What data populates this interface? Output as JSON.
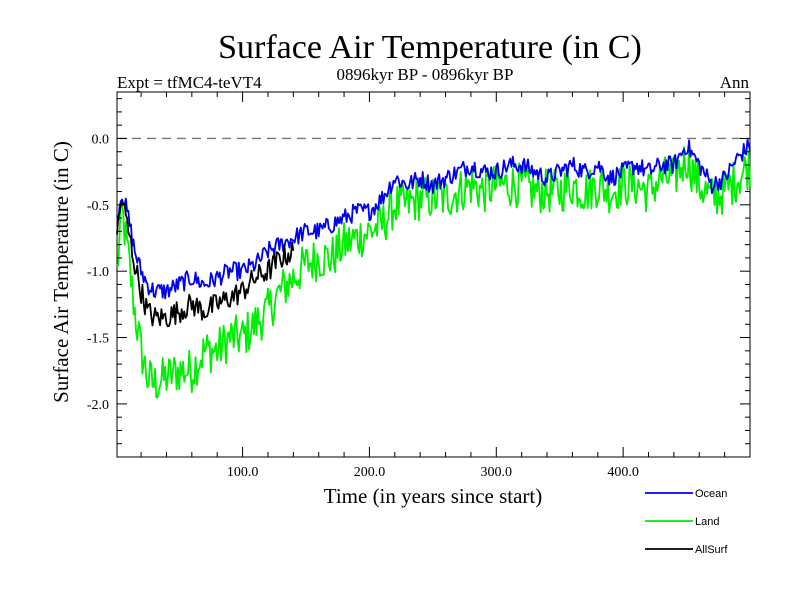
{
  "chart_data": {
    "type": "line",
    "title": "Surface Air Temperature (in C)",
    "experiment": "Expt = tfMC4-teVT4",
    "period": "0896kyr BP - 0896kyr BP",
    "season": "Ann",
    "xlabel": "Time (in years since start)",
    "ylabel": "Surface Air Temperature (in C)",
    "xlim": [
      1,
      500
    ],
    "ylim": [
      -2.4,
      0.35
    ],
    "xticks": [
      100,
      200,
      300,
      400
    ],
    "xtick_labels": [
      "100.0",
      "200.0",
      "300.0",
      "400.0"
    ],
    "yticks": [
      0.0,
      -0.5,
      -1.0,
      -1.5,
      -2.0
    ],
    "ytick_labels": [
      "0.0",
      "-0.5",
      "-1.0",
      "-1.5",
      "-2.0"
    ],
    "reference_line": 0.0,
    "series": [
      {
        "name": "Ocean",
        "color": "#0000ee",
        "years": [
          1,
          5,
          10,
          15,
          20,
          25,
          30,
          40,
          50,
          60,
          70,
          80,
          90,
          100,
          110,
          120,
          130,
          140,
          150,
          160,
          170,
          180,
          190,
          200,
          210,
          220,
          230,
          240,
          250,
          260,
          270,
          280,
          290,
          300,
          310,
          320,
          330,
          340,
          350,
          360,
          370,
          380,
          390,
          400,
          410,
          420,
          430,
          440,
          450,
          460,
          470,
          480,
          490,
          500
        ],
        "values": [
          -0.6,
          -0.4,
          -0.6,
          -0.85,
          -1.0,
          -1.1,
          -1.15,
          -1.15,
          -1.1,
          -1.05,
          -1.1,
          -1.05,
          -1.0,
          -1.0,
          -0.95,
          -0.85,
          -0.8,
          -0.75,
          -0.7,
          -0.7,
          -0.65,
          -0.6,
          -0.55,
          -0.55,
          -0.45,
          -0.3,
          -0.35,
          -0.3,
          -0.35,
          -0.3,
          -0.25,
          -0.2,
          -0.25,
          -0.25,
          -0.2,
          -0.2,
          -0.25,
          -0.3,
          -0.25,
          -0.2,
          -0.25,
          -0.2,
          -0.3,
          -0.25,
          -0.2,
          -0.25,
          -0.2,
          -0.2,
          -0.05,
          -0.2,
          -0.35,
          -0.3,
          -0.15,
          -0.05
        ]
      },
      {
        "name": "Land",
        "color": "#00ee00",
        "years": [
          1,
          5,
          10,
          15,
          20,
          25,
          30,
          40,
          50,
          60,
          70,
          80,
          90,
          100,
          110,
          120,
          130,
          140,
          150,
          160,
          170,
          180,
          190,
          200,
          210,
          220,
          230,
          240,
          250,
          260,
          270,
          280,
          290,
          300,
          310,
          320,
          330,
          340,
          350,
          360,
          370,
          380,
          390,
          400,
          410,
          420,
          430,
          440,
          450,
          460,
          470,
          480,
          490,
          500
        ],
        "values": [
          -1.0,
          -0.55,
          -0.9,
          -1.3,
          -1.6,
          -1.8,
          -1.85,
          -1.8,
          -1.75,
          -1.75,
          -1.6,
          -1.6,
          -1.5,
          -1.5,
          -1.4,
          -1.3,
          -1.15,
          -1.05,
          -0.95,
          -0.9,
          -0.9,
          -0.8,
          -0.75,
          -0.7,
          -0.65,
          -0.5,
          -0.5,
          -0.45,
          -0.45,
          -0.45,
          -0.4,
          -0.35,
          -0.4,
          -0.35,
          -0.35,
          -0.35,
          -0.4,
          -0.4,
          -0.4,
          -0.35,
          -0.4,
          -0.35,
          -0.4,
          -0.35,
          -0.35,
          -0.4,
          -0.3,
          -0.3,
          -0.15,
          -0.35,
          -0.45,
          -0.4,
          -0.3,
          -0.2
        ]
      },
      {
        "name": "AllSurf",
        "color": "#000000",
        "years": [
          1,
          5,
          10,
          15,
          20,
          25,
          30,
          40,
          50,
          60,
          70,
          80,
          90,
          100,
          110,
          120,
          130,
          140
        ],
        "values": [
          -0.7,
          -0.45,
          -0.7,
          -0.95,
          -1.15,
          -1.3,
          -1.35,
          -1.35,
          -1.3,
          -1.25,
          -1.3,
          -1.25,
          -1.2,
          -1.15,
          -1.05,
          -1.0,
          -0.9,
          -0.85
        ]
      }
    ]
  }
}
